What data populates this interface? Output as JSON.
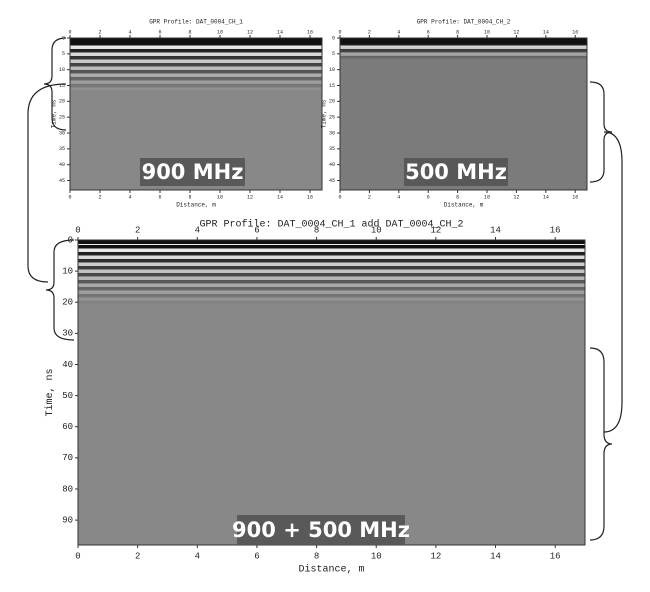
{
  "panels": [
    {
      "title": "GPR Profile: DAT_0004_CH_1",
      "x_label": "Distance, m",
      "y_label": "Time, ns",
      "label": "900 MHz",
      "xlim": [
        0,
        16.8
      ],
      "ylim": [
        0,
        48
      ],
      "xticks": [
        0,
        2,
        4,
        6,
        8,
        10,
        12,
        14,
        16
      ],
      "yticks": [
        0,
        5,
        10,
        15,
        20,
        25,
        30,
        35,
        40,
        45
      ]
    },
    {
      "title": "GPR Profile: DAT_0004_CH_2",
      "x_label": "Distance, m",
      "y_label": "Time, ns",
      "label": "500 MHz",
      "xlim": [
        0,
        16.8
      ],
      "ylim": [
        0,
        48
      ],
      "xticks": [
        0,
        2,
        4,
        6,
        8,
        10,
        12,
        14,
        16
      ],
      "yticks": [
        0,
        5,
        10,
        15,
        20,
        25,
        30,
        35,
        40,
        45
      ]
    },
    {
      "title": "GPR Profile: DAT_0004_CH_1 add DAT_0004_CH_2",
      "x_label": "Distance, m",
      "y_label": "Time, ns",
      "label": "900 + 500 MHz",
      "xlim": [
        0,
        17
      ],
      "ylim": [
        0,
        98
      ],
      "xticks": [
        0,
        2,
        4,
        6,
        8,
        10,
        12,
        14,
        16
      ],
      "yticks": [
        0,
        10,
        20,
        30,
        40,
        50,
        60,
        70,
        80,
        90
      ]
    }
  ]
}
